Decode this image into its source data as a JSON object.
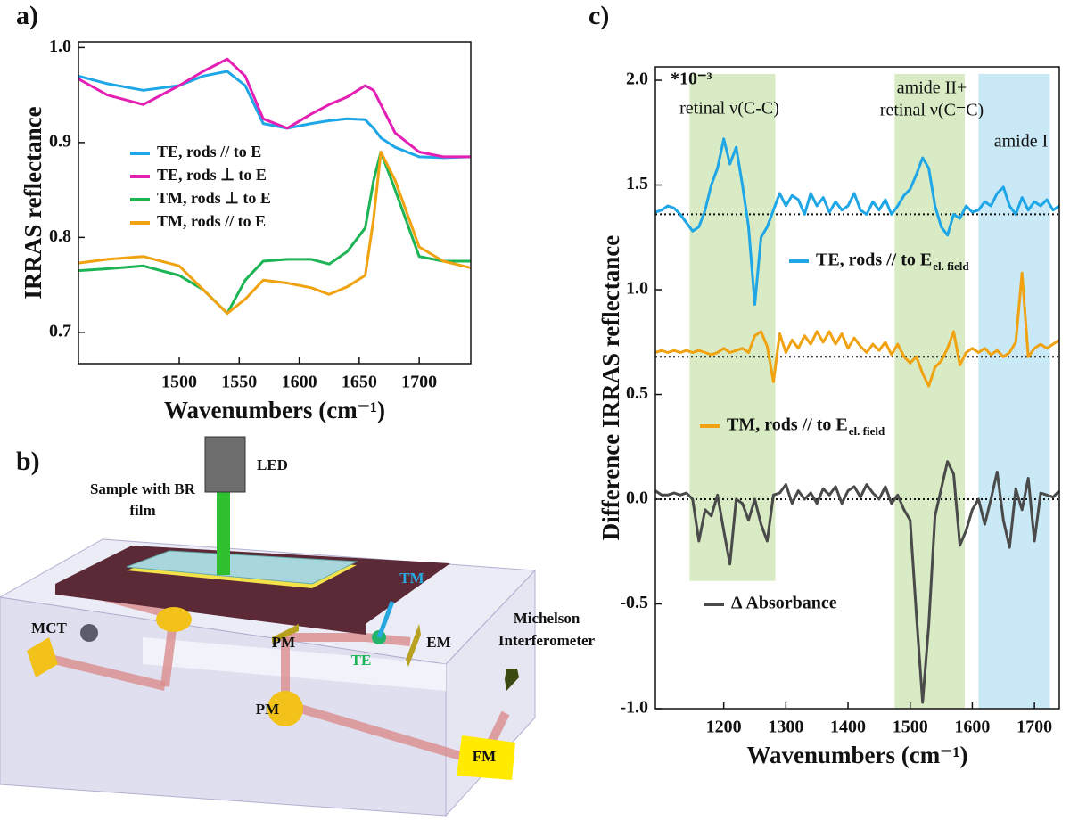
{
  "chart_data": [
    {
      "type": "line",
      "label": "a)",
      "x_label": "Wavenumbers (cm⁻¹)",
      "y_label": "IRRAS reflectance",
      "x": [
        1416,
        1440,
        1470,
        1500,
        1520,
        1540,
        1555,
        1570,
        1590,
        1610,
        1625,
        1640,
        1655,
        1662,
        1668,
        1680,
        1700,
        1720,
        1743
      ],
      "series": [
        {
          "name": "TE, rods // to E",
          "color": "#1ea6e6",
          "values": [
            0.97,
            0.962,
            0.955,
            0.96,
            0.97,
            0.975,
            0.96,
            0.92,
            0.915,
            0.92,
            0.923,
            0.925,
            0.924,
            0.915,
            0.905,
            0.895,
            0.885,
            0.884,
            0.885
          ]
        },
        {
          "name": "TE, rods ⊥ to E",
          "color": "#e41fb4",
          "values": [
            0.967,
            0.95,
            0.94,
            0.96,
            0.975,
            0.988,
            0.97,
            0.925,
            0.915,
            0.93,
            0.94,
            0.948,
            0.96,
            0.955,
            0.94,
            0.91,
            0.89,
            0.885,
            0.885
          ]
        },
        {
          "name": "TM, rods ⊥ to E",
          "color": "#1db455",
          "values": [
            0.765,
            0.767,
            0.77,
            0.76,
            0.745,
            0.72,
            0.755,
            0.775,
            0.777,
            0.777,
            0.772,
            0.785,
            0.81,
            0.86,
            0.89,
            0.85,
            0.78,
            0.775,
            0.775
          ]
        },
        {
          "name": "TM, rods // to E",
          "color": "#f0a210",
          "values": [
            0.773,
            0.777,
            0.78,
            0.77,
            0.745,
            0.72,
            0.735,
            0.755,
            0.752,
            0.747,
            0.74,
            0.748,
            0.76,
            0.82,
            0.89,
            0.86,
            0.79,
            0.775,
            0.768
          ]
        }
      ],
      "xlim": [
        1416,
        1743
      ],
      "ylim": [
        0.667,
        1.006
      ],
      "xticks": [
        1500,
        1550,
        1600,
        1650,
        1700
      ],
      "yticks": [
        {
          "value": 1.0,
          "label": "1.0"
        },
        0.9,
        0.8,
        0.7
      ]
    },
    {
      "type": "line",
      "label": "c)",
      "x_label": "Wavenumbers (cm⁻¹)",
      "y_label": "Difference IRRAS reflectance",
      "annotations": [
        "*10⁻³",
        "retinal ν(C-C)",
        "amide II+",
        "retinal ν(C=C)",
        "amide I"
      ],
      "bands": [
        {
          "x": [
            1145,
            1283
          ],
          "y": [
            -0.39,
            2.03
          ],
          "color": "#d8ebc4"
        },
        {
          "x": [
            1475,
            1588
          ],
          "y": [
            -1.0,
            2.03
          ],
          "color": "#d8ebc4"
        },
        {
          "x": [
            1610,
            1725
          ],
          "y": [
            -1.0,
            2.03
          ],
          "color": "#c9e9f7"
        }
      ],
      "ref_lines": [
        1.36,
        0.68,
        0
      ],
      "x": [
        1090,
        1100,
        1110,
        1120,
        1130,
        1140,
        1150,
        1160,
        1170,
        1180,
        1190,
        1200,
        1210,
        1220,
        1230,
        1240,
        1250,
        1260,
        1270,
        1280,
        1290,
        1300,
        1310,
        1320,
        1330,
        1340,
        1350,
        1360,
        1370,
        1380,
        1390,
        1400,
        1410,
        1420,
        1430,
        1440,
        1450,
        1460,
        1470,
        1480,
        1490,
        1500,
        1510,
        1520,
        1530,
        1540,
        1550,
        1560,
        1570,
        1580,
        1590,
        1600,
        1610,
        1620,
        1630,
        1640,
        1650,
        1660,
        1670,
        1680,
        1690,
        1700,
        1710,
        1720,
        1730,
        1740
      ],
      "series": [
        {
          "name": "TE, rods // to E",
          "name_sub": "el. field",
          "color": "#1ea6e6",
          "values": [
            1.37,
            1.38,
            1.4,
            1.39,
            1.36,
            1.32,
            1.28,
            1.3,
            1.38,
            1.5,
            1.58,
            1.72,
            1.6,
            1.68,
            1.5,
            1.3,
            0.93,
            1.25,
            1.3,
            1.38,
            1.46,
            1.4,
            1.45,
            1.43,
            1.36,
            1.46,
            1.4,
            1.44,
            1.37,
            1.42,
            1.38,
            1.4,
            1.46,
            1.38,
            1.36,
            1.42,
            1.38,
            1.43,
            1.36,
            1.4,
            1.45,
            1.48,
            1.55,
            1.63,
            1.58,
            1.4,
            1.3,
            1.26,
            1.36,
            1.34,
            1.4,
            1.37,
            1.38,
            1.42,
            1.4,
            1.46,
            1.49,
            1.4,
            1.36,
            1.44,
            1.38,
            1.42,
            1.4,
            1.43,
            1.38,
            1.4
          ]
        },
        {
          "name": "TM, rods // to E",
          "name_sub": "el. field",
          "color": "#f0a210",
          "values": [
            0.7,
            0.71,
            0.7,
            0.71,
            0.7,
            0.71,
            0.7,
            0.71,
            0.7,
            0.69,
            0.7,
            0.72,
            0.7,
            0.71,
            0.72,
            0.7,
            0.78,
            0.8,
            0.73,
            0.56,
            0.79,
            0.7,
            0.76,
            0.72,
            0.78,
            0.74,
            0.8,
            0.75,
            0.8,
            0.74,
            0.79,
            0.72,
            0.77,
            0.73,
            0.7,
            0.74,
            0.71,
            0.75,
            0.69,
            0.74,
            0.68,
            0.65,
            0.68,
            0.6,
            0.54,
            0.63,
            0.66,
            0.72,
            0.8,
            0.64,
            0.7,
            0.72,
            0.7,
            0.72,
            0.69,
            0.71,
            0.68,
            0.7,
            0.75,
            1.08,
            0.68,
            0.72,
            0.74,
            0.72,
            0.74,
            0.76
          ]
        },
        {
          "name": "Δ Absorbance",
          "color": "#4a4a4a",
          "values": [
            0.04,
            0.02,
            0.02,
            0.03,
            0.02,
            0.03,
            0.0,
            -0.2,
            -0.05,
            -0.08,
            0.02,
            -0.15,
            -0.31,
            0.0,
            -0.02,
            -0.1,
            0.0,
            -0.12,
            -0.2,
            0.02,
            0.03,
            0.07,
            -0.02,
            0.04,
            0.0,
            0.03,
            -0.02,
            0.05,
            0.02,
            0.06,
            -0.02,
            0.04,
            0.06,
            0.01,
            0.07,
            0.03,
            0.0,
            0.06,
            -0.02,
            0.02,
            -0.05,
            -0.1,
            -0.55,
            -0.97,
            -0.6,
            -0.08,
            0.05,
            0.18,
            0.12,
            -0.22,
            -0.15,
            -0.05,
            0.0,
            -0.12,
            0.0,
            0.13,
            -0.1,
            -0.23,
            0.05,
            -0.05,
            0.1,
            -0.2,
            0.03,
            0.02,
            0.01,
            0.04
          ]
        }
      ],
      "xlim": [
        1090,
        1740
      ],
      "ylim": [
        -1.0,
        2.064
      ],
      "xticks": [
        1200,
        1300,
        1400,
        1500,
        1600,
        1700
      ],
      "yticks": [
        {
          "value": 2,
          "label": "2.0"
        },
        1.5,
        {
          "value": 1,
          "label": "1.0"
        },
        0.5,
        {
          "value": 0,
          "label": "0.0"
        },
        -0.5,
        {
          "value": -1,
          "label": "-1.0"
        }
      ]
    }
  ],
  "diagram": {
    "label": "b)",
    "texts": [
      "LED",
      "Sample with BR",
      "film",
      "TM",
      "TE",
      "MCT",
      "PM",
      "PM",
      "EM",
      "Michelson",
      "Interferometer",
      "FM"
    ]
  }
}
